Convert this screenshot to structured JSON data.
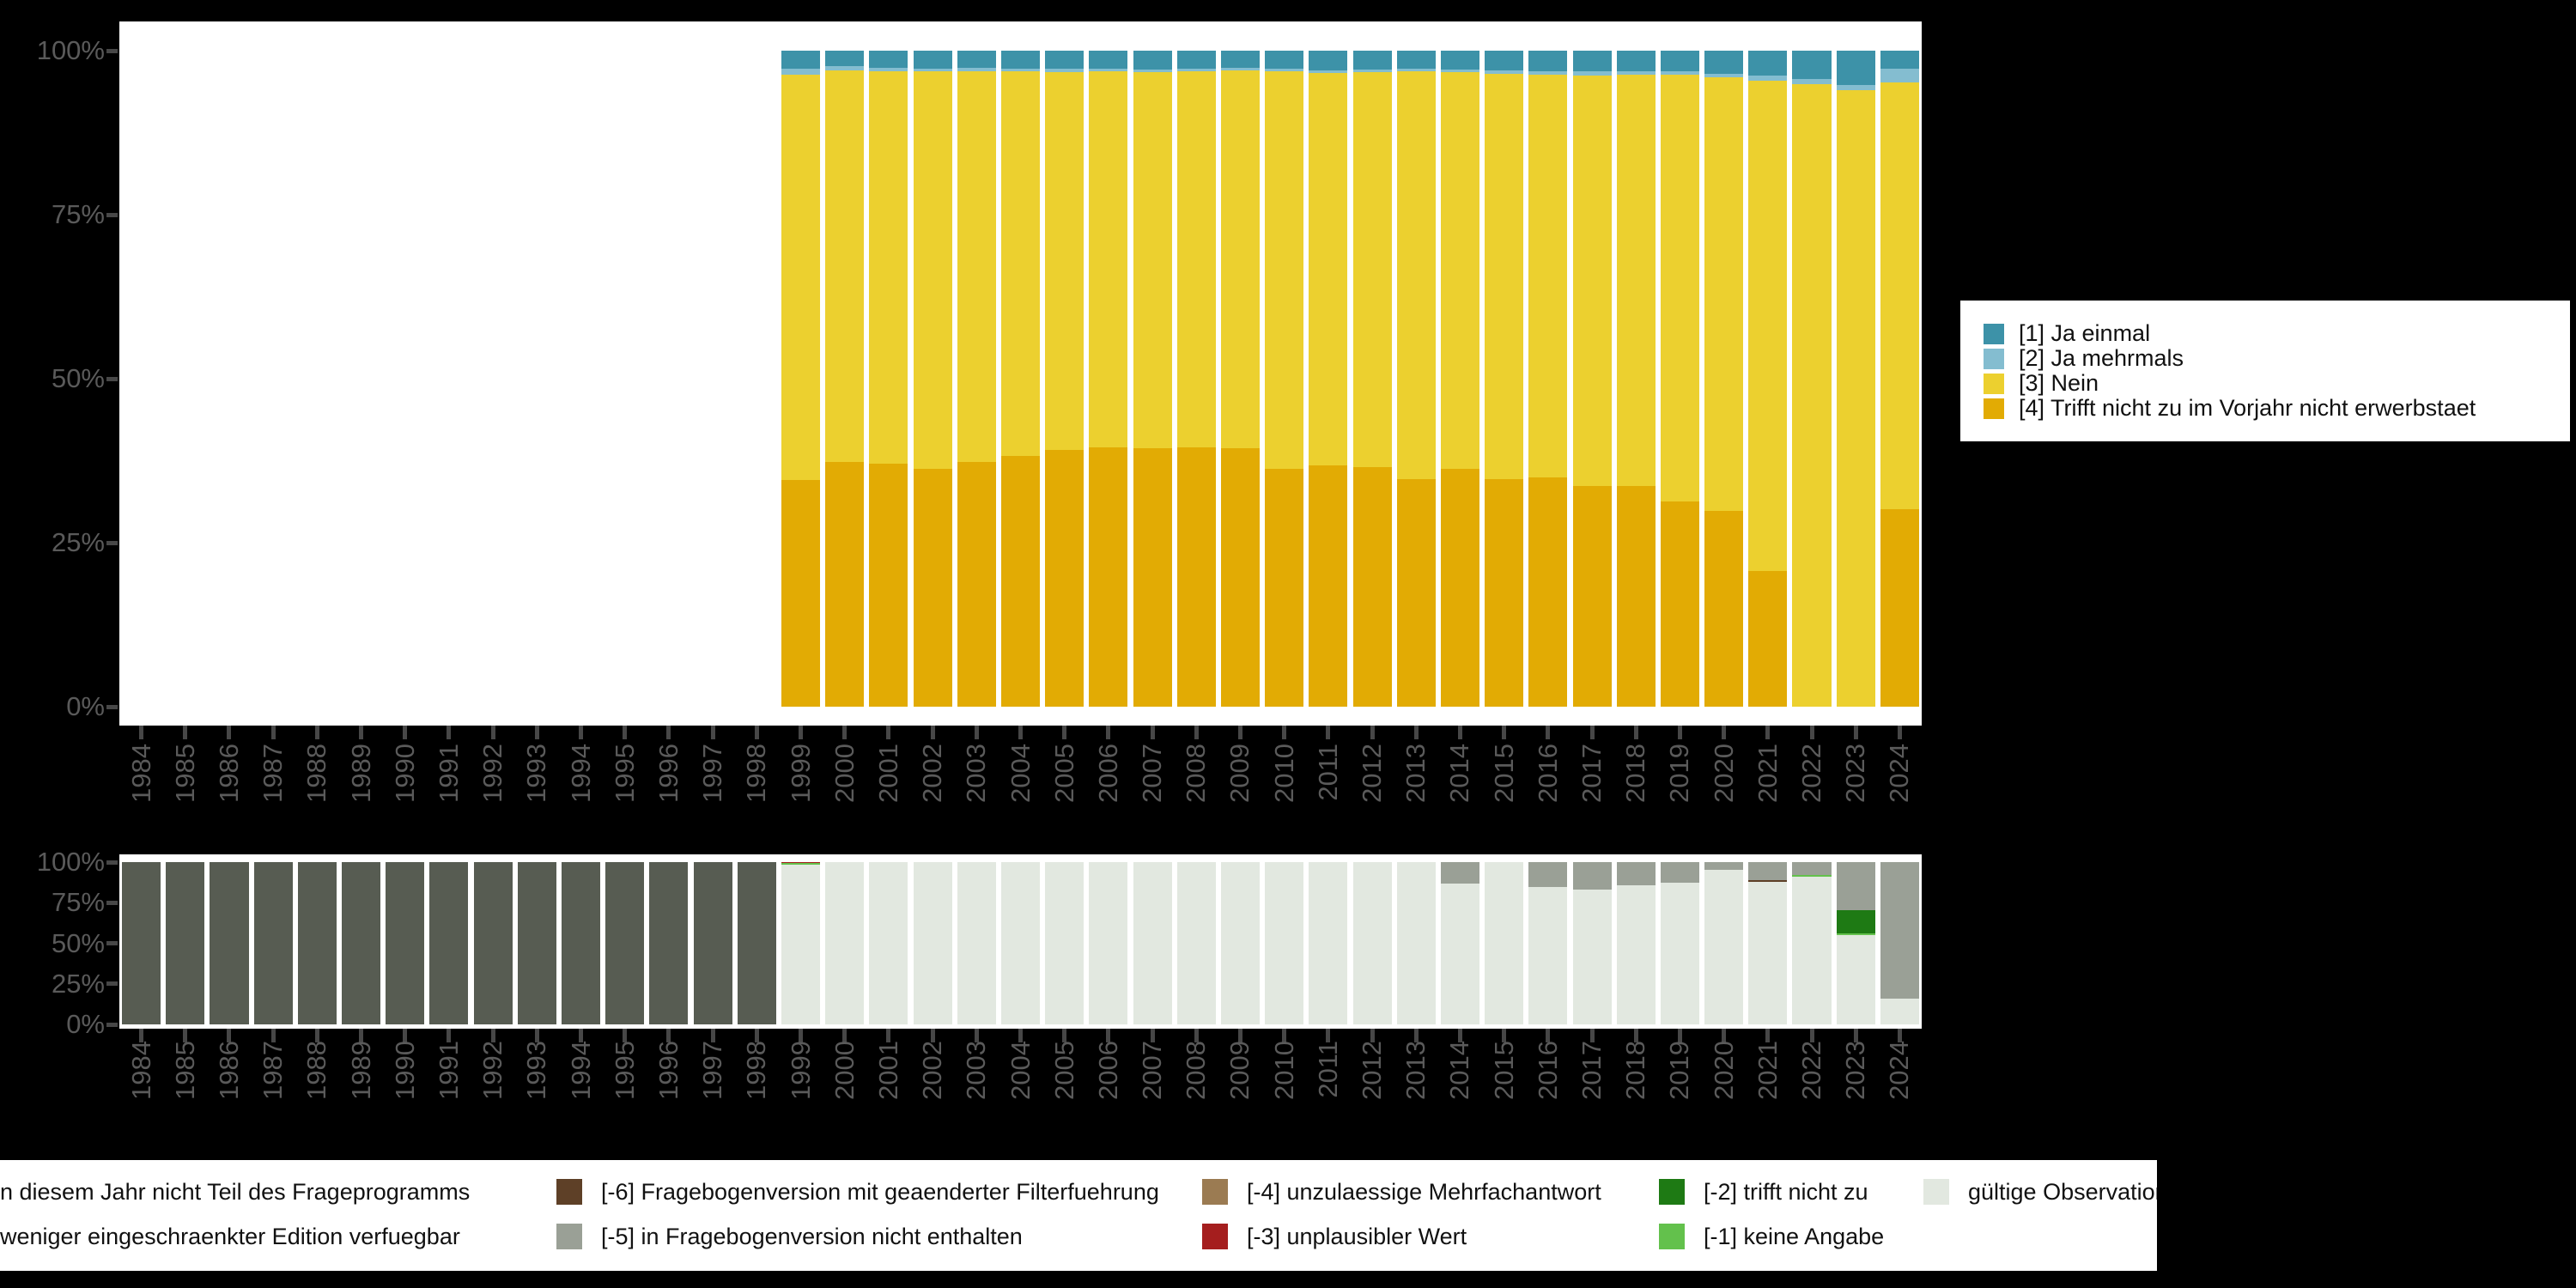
{
  "colors": {
    "background": "#000000",
    "plot_background": "#ffffff",
    "axis_text": "#5a5a5a",
    "tick_mark": "#474747",
    "legend_text": "#111111",
    "ja1": "#3d92a8",
    "ja2": "#84bdd0",
    "nein": "#ecd02f",
    "t4": "#e2ab04",
    "nicht_teil": "#575c52",
    "edition": "#b4b8b0",
    "m6": "#5e4027",
    "m5": "#9aa096",
    "m4": "#9b7b52",
    "m3": "#a51e1e",
    "m2": "#1e7a14",
    "m1": "#63c14c",
    "ok": "#e2e8e0"
  },
  "top_legend": {
    "entries": [
      {
        "key": "ja1",
        "label": "[1] Ja einmal"
      },
      {
        "key": "ja2",
        "label": "[2] Ja mehrmals"
      },
      {
        "key": "nein",
        "label": "[3] Nein"
      },
      {
        "key": "t4",
        "label": "[4] Trifft nicht zu im Vorjahr nicht erwerbstaet"
      }
    ]
  },
  "bottom_legend": {
    "rows": [
      [
        {
          "key": "nicht_teil",
          "label": "n diesem Jahr nicht Teil des Frageprogramms"
        },
        {
          "key": "m6",
          "label": "[-6] Fragebogenversion mit geaenderter Filterfuehrung"
        },
        {
          "key": "m4",
          "label": "[-4] unzulaessige Mehrfachantwort"
        },
        {
          "key": "m2",
          "label": "[-2] trifft nicht zu"
        },
        {
          "key": "ok",
          "label": "gültige Observationen"
        }
      ],
      [
        {
          "key": "edition",
          "label": "weniger eingeschraenkter Edition verfuegbar"
        },
        {
          "key": "m5",
          "label": "[-5] in Fragebogenversion nicht enthalten"
        },
        {
          "key": "m3",
          "label": "[-3] unplausibler Wert"
        },
        {
          "key": "m1",
          "label": "[-1] keine Angabe"
        }
      ]
    ]
  },
  "chart_data": [
    {
      "type": "bar",
      "stacked": true,
      "title": "",
      "xlabel": "",
      "ylabel": "",
      "grid": false,
      "legend_position": "right",
      "ylim": [
        0,
        100
      ],
      "y_ticks": [
        "100%",
        "75%",
        "50%",
        "25%",
        "0%"
      ],
      "categories": [
        1984,
        1985,
        1986,
        1987,
        1988,
        1989,
        1990,
        1991,
        1992,
        1993,
        1994,
        1995,
        1996,
        1997,
        1998,
        1999,
        2000,
        2001,
        2002,
        2003,
        2004,
        2005,
        2006,
        2007,
        2008,
        2009,
        2010,
        2011,
        2012,
        2013,
        2014,
        2015,
        2016,
        2017,
        2018,
        2019,
        2020,
        2021,
        2022,
        2023,
        2024
      ],
      "data_years": [
        1999,
        2000,
        2001,
        2002,
        2003,
        2004,
        2005,
        2006,
        2007,
        2008,
        2009,
        2010,
        2011,
        2012,
        2013,
        2014,
        2015,
        2016,
        2017,
        2018,
        2019,
        2020,
        2021,
        2022,
        2023,
        2024
      ],
      "series": [
        {
          "key": "ja1",
          "name": "[1] Ja einmal",
          "values": [
            2.8,
            2.4,
            2.6,
            2.7,
            2.6,
            2.7,
            2.8,
            2.7,
            2.9,
            2.7,
            2.6,
            2.8,
            3.0,
            2.9,
            2.8,
            2.9,
            3.0,
            3.2,
            3.2,
            3.1,
            3.2,
            3.5,
            3.8,
            4.3,
            5.2,
            2.8
          ]
        },
        {
          "key": "ja2",
          "name": "[2] Ja mehrmals",
          "values": [
            0.8,
            0.6,
            0.5,
            0.5,
            0.5,
            0.4,
            0.5,
            0.4,
            0.4,
            0.4,
            0.4,
            0.4,
            0.4,
            0.4,
            0.4,
            0.4,
            0.5,
            0.5,
            0.6,
            0.6,
            0.5,
            0.5,
            0.8,
            0.8,
            0.8,
            2.0
          ]
        },
        {
          "key": "nein",
          "name": "[3] Nein",
          "values": [
            61.9,
            59.7,
            59.8,
            60.5,
            59.6,
            58.7,
            57.5,
            57.4,
            57.3,
            57.4,
            57.6,
            60.5,
            59.8,
            60.2,
            62.1,
            60.4,
            61.8,
            61.4,
            62.5,
            62.7,
            65.0,
            66.1,
            74.7,
            94.9,
            94.0,
            65.1
          ]
        },
        {
          "key": "t4",
          "name": "[4] Trifft nicht zu im Vorjahr nicht erwerbstaet",
          "values": [
            34.5,
            37.3,
            37.1,
            36.3,
            37.3,
            38.2,
            39.2,
            39.5,
            39.4,
            39.5,
            39.4,
            36.3,
            36.8,
            36.5,
            34.7,
            36.3,
            34.7,
            34.9,
            33.7,
            33.6,
            31.3,
            29.9,
            20.7,
            0,
            0,
            30.1
          ]
        }
      ]
    },
    {
      "type": "bar",
      "stacked": true,
      "title": "",
      "xlabel": "",
      "ylabel": "",
      "grid": false,
      "ylim": [
        0,
        100
      ],
      "y_ticks": [
        "100%",
        "75%",
        "50%",
        "25%",
        "0%"
      ],
      "categories": [
        1984,
        1985,
        1986,
        1987,
        1988,
        1989,
        1990,
        1991,
        1992,
        1993,
        1994,
        1995,
        1996,
        1997,
        1998,
        1999,
        2000,
        2001,
        2002,
        2003,
        2004,
        2005,
        2006,
        2007,
        2008,
        2009,
        2010,
        2011,
        2012,
        2013,
        2014,
        2015,
        2016,
        2017,
        2018,
        2019,
        2020,
        2021,
        2022,
        2023,
        2024
      ],
      "bars": [
        {
          "year": 1984,
          "segments": [
            {
              "key": "nicht_teil",
              "value": 100
            }
          ]
        },
        {
          "year": 1985,
          "segments": [
            {
              "key": "nicht_teil",
              "value": 100
            }
          ]
        },
        {
          "year": 1986,
          "segments": [
            {
              "key": "nicht_teil",
              "value": 100
            }
          ]
        },
        {
          "year": 1987,
          "segments": [
            {
              "key": "nicht_teil",
              "value": 100
            }
          ]
        },
        {
          "year": 1988,
          "segments": [
            {
              "key": "nicht_teil",
              "value": 100
            }
          ]
        },
        {
          "year": 1989,
          "segments": [
            {
              "key": "nicht_teil",
              "value": 100
            }
          ]
        },
        {
          "year": 1990,
          "segments": [
            {
              "key": "nicht_teil",
              "value": 100
            }
          ]
        },
        {
          "year": 1991,
          "segments": [
            {
              "key": "nicht_teil",
              "value": 100
            }
          ]
        },
        {
          "year": 1992,
          "segments": [
            {
              "key": "nicht_teil",
              "value": 100
            }
          ]
        },
        {
          "year": 1993,
          "segments": [
            {
              "key": "nicht_teil",
              "value": 100
            }
          ]
        },
        {
          "year": 1994,
          "segments": [
            {
              "key": "nicht_teil",
              "value": 100
            }
          ]
        },
        {
          "year": 1995,
          "segments": [
            {
              "key": "nicht_teil",
              "value": 100
            }
          ]
        },
        {
          "year": 1996,
          "segments": [
            {
              "key": "nicht_teil",
              "value": 100
            }
          ]
        },
        {
          "year": 1997,
          "segments": [
            {
              "key": "nicht_teil",
              "value": 100
            }
          ]
        },
        {
          "year": 1998,
          "segments": [
            {
              "key": "nicht_teil",
              "value": 100
            }
          ]
        },
        {
          "year": 1999,
          "segments": [
            {
              "key": "m3",
              "value": 0.7
            },
            {
              "key": "m1",
              "value": 0.7
            },
            {
              "key": "ok",
              "value": 98.6
            }
          ]
        },
        {
          "year": 2000,
          "segments": [
            {
              "key": "ok",
              "value": 100
            }
          ]
        },
        {
          "year": 2001,
          "segments": [
            {
              "key": "ok",
              "value": 100
            }
          ]
        },
        {
          "year": 2002,
          "segments": [
            {
              "key": "ok",
              "value": 100
            }
          ]
        },
        {
          "year": 2003,
          "segments": [
            {
              "key": "ok",
              "value": 100
            }
          ]
        },
        {
          "year": 2004,
          "segments": [
            {
              "key": "ok",
              "value": 100
            }
          ]
        },
        {
          "year": 2005,
          "segments": [
            {
              "key": "ok",
              "value": 100
            }
          ]
        },
        {
          "year": 2006,
          "segments": [
            {
              "key": "ok",
              "value": 100
            }
          ]
        },
        {
          "year": 2007,
          "segments": [
            {
              "key": "ok",
              "value": 100
            }
          ]
        },
        {
          "year": 2008,
          "segments": [
            {
              "key": "ok",
              "value": 100
            }
          ]
        },
        {
          "year": 2009,
          "segments": [
            {
              "key": "ok",
              "value": 100
            }
          ]
        },
        {
          "year": 2010,
          "segments": [
            {
              "key": "ok",
              "value": 100
            }
          ]
        },
        {
          "year": 2011,
          "segments": [
            {
              "key": "ok",
              "value": 100
            }
          ]
        },
        {
          "year": 2012,
          "segments": [
            {
              "key": "ok",
              "value": 100
            }
          ]
        },
        {
          "year": 2013,
          "segments": [
            {
              "key": "ok",
              "value": 100
            }
          ]
        },
        {
          "year": 2014,
          "segments": [
            {
              "key": "m5",
              "value": 13.4
            },
            {
              "key": "ok",
              "value": 86.6
            }
          ]
        },
        {
          "year": 2015,
          "segments": [
            {
              "key": "ok",
              "value": 100
            }
          ]
        },
        {
          "year": 2016,
          "segments": [
            {
              "key": "m5",
              "value": 15.5
            },
            {
              "key": "ok",
              "value": 84.5
            }
          ]
        },
        {
          "year": 2017,
          "segments": [
            {
              "key": "m5",
              "value": 17.0
            },
            {
              "key": "ok",
              "value": 83.0
            }
          ]
        },
        {
          "year": 2018,
          "segments": [
            {
              "key": "m5",
              "value": 14.3
            },
            {
              "key": "ok",
              "value": 85.7
            }
          ]
        },
        {
          "year": 2019,
          "segments": [
            {
              "key": "m5",
              "value": 12.5
            },
            {
              "key": "ok",
              "value": 87.5
            }
          ]
        },
        {
          "year": 2020,
          "segments": [
            {
              "key": "m5",
              "value": 4.5
            },
            {
              "key": "ok",
              "value": 95.5
            }
          ]
        },
        {
          "year": 2021,
          "segments": [
            {
              "key": "m5",
              "value": 11.3
            },
            {
              "key": "m6",
              "value": 0.7
            },
            {
              "key": "ok",
              "value": 88.0
            }
          ]
        },
        {
          "year": 2022,
          "segments": [
            {
              "key": "m5",
              "value": 7.7
            },
            {
              "key": "m1",
              "value": 1.1
            },
            {
              "key": "ok",
              "value": 91.2
            }
          ]
        },
        {
          "year": 2023,
          "segments": [
            {
              "key": "m5",
              "value": 29.5
            },
            {
              "key": "m2",
              "value": 14.3
            },
            {
              "key": "m1",
              "value": 1.2
            },
            {
              "key": "ok",
              "value": 55.0
            }
          ]
        },
        {
          "year": 2024,
          "segments": [
            {
              "key": "m5",
              "value": 84.0
            },
            {
              "key": "ok",
              "value": 16.0
            }
          ]
        }
      ]
    }
  ]
}
